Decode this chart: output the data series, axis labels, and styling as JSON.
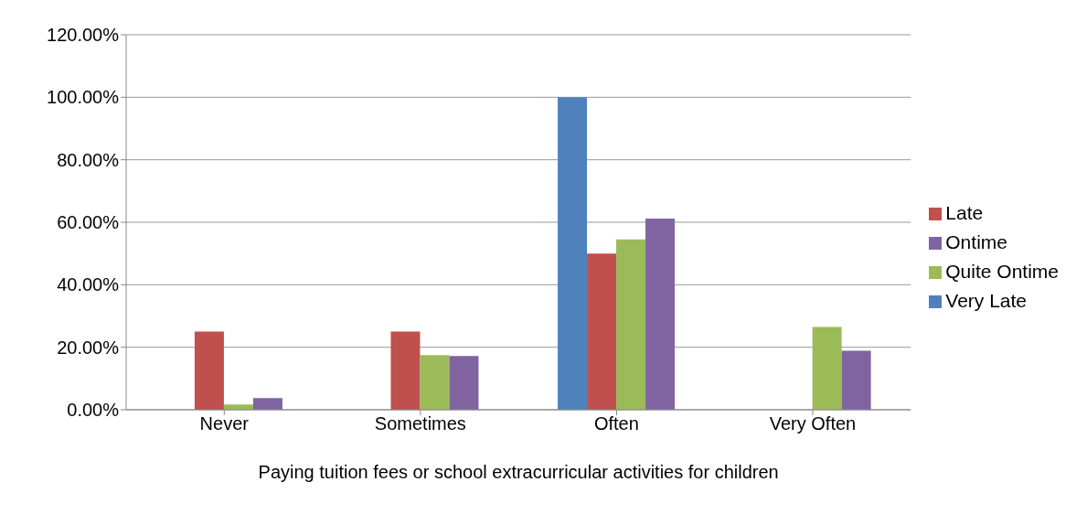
{
  "chart_data": {
    "type": "bar",
    "xlabel": "Paying tuition fees or school extracurricular activities for children",
    "categories": [
      "Never",
      "Sometimes",
      "Often",
      "Very Often"
    ],
    "series": [
      {
        "name": "Very Late",
        "color": "#4f81bd",
        "values": [
          0,
          0,
          100,
          0
        ]
      },
      {
        "name": "Late",
        "color": "#c0504d",
        "values": [
          25,
          25,
          50,
          0
        ]
      },
      {
        "name": "Quite Ontime",
        "color": "#9bbb59",
        "values": [
          1.7,
          17.5,
          54.5,
          26.5
        ]
      },
      {
        "name": "Ontime",
        "color": "#8064a2",
        "values": [
          3.7,
          17.2,
          61.2,
          18.9
        ]
      }
    ],
    "ylim": [
      0,
      120
    ],
    "yticks": [
      {
        "value": 0,
        "label": "0.00%"
      },
      {
        "value": 20,
        "label": "20.00%"
      },
      {
        "value": 40,
        "label": "40.00%"
      },
      {
        "value": 60,
        "label": "60.00%"
      },
      {
        "value": 80,
        "label": "80.00%"
      },
      {
        "value": 100,
        "label": "100.00%"
      },
      {
        "value": 120,
        "label": "120.00%"
      }
    ],
    "grid": "y",
    "legend": "right"
  }
}
